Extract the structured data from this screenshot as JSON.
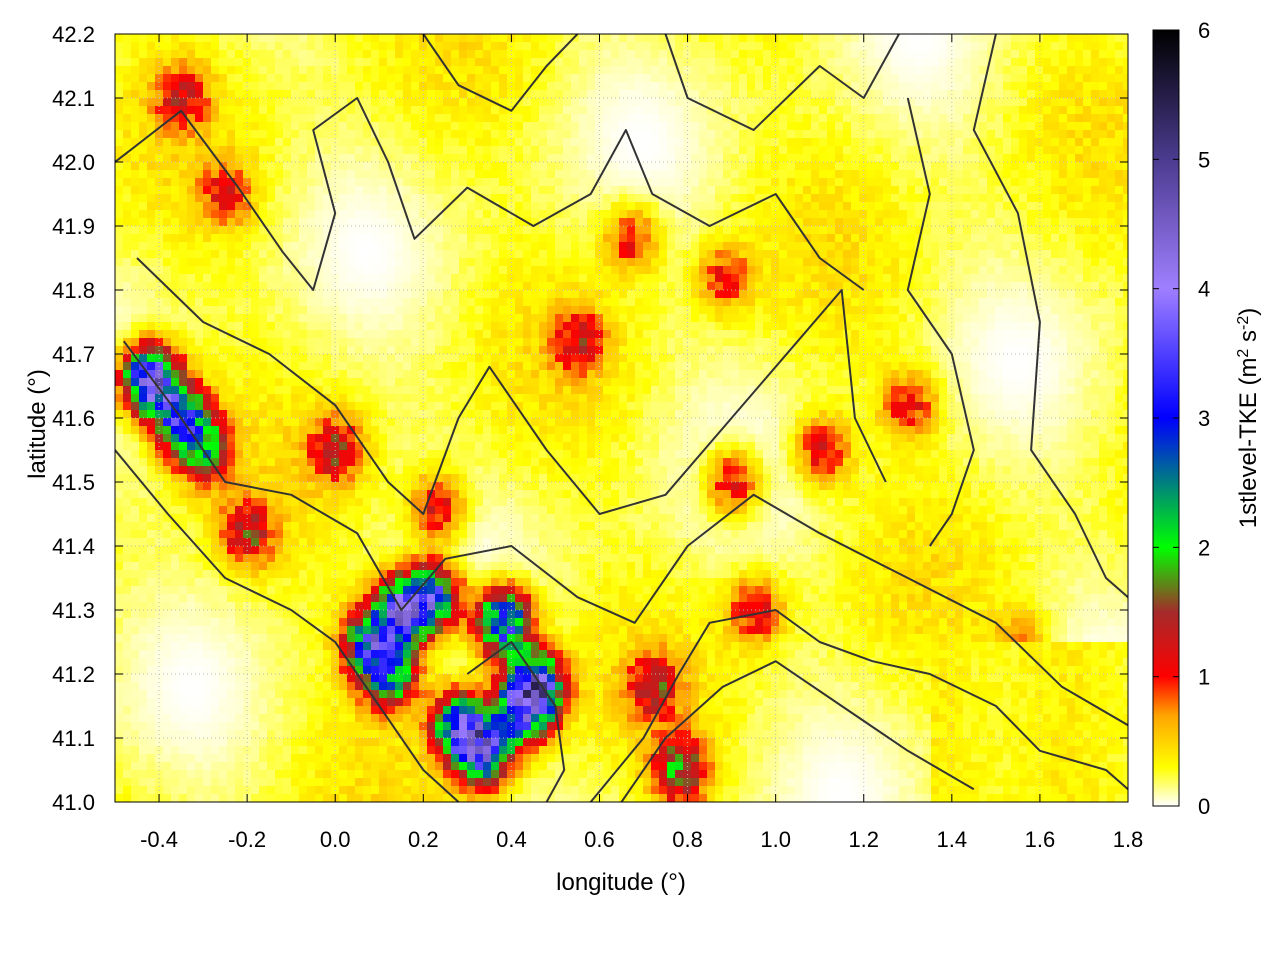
{
  "chart_data": {
    "type": "heatmap",
    "title": "",
    "xlabel": "longitude (°)",
    "ylabel": "latitude (°)",
    "xlim": [
      -0.5,
      1.8
    ],
    "ylim": [
      41.0,
      42.2
    ],
    "xticks": [
      "-0.4",
      "-0.2",
      "0.0",
      "0.2",
      "0.4",
      "0.6",
      "0.8",
      "1.0",
      "1.2",
      "1.4",
      "1.6",
      "1.8"
    ],
    "xtick_values": [
      -0.4,
      -0.2,
      0.0,
      0.2,
      0.4,
      0.6,
      0.8,
      1.0,
      1.2,
      1.4,
      1.6,
      1.8
    ],
    "yticks": [
      "41.0",
      "41.1",
      "41.2",
      "41.3",
      "41.4",
      "41.5",
      "41.6",
      "41.7",
      "41.8",
      "41.9",
      "42.0",
      "42.1",
      "42.2"
    ],
    "ytick_values": [
      41.0,
      41.1,
      41.2,
      41.3,
      41.4,
      41.5,
      41.6,
      41.7,
      41.8,
      41.9,
      42.0,
      42.1,
      42.2
    ],
    "grid": true,
    "colorbar": {
      "label": "1stlevel-TKE (m² s⁻²)",
      "label_main": "1stlevel-TKE (m",
      "label_sup1": "2",
      "label_mid": " s",
      "label_sup2": "-2",
      "label_end": ")",
      "range": [
        0,
        6
      ],
      "ticks": [
        "0",
        "1",
        "2",
        "3",
        "4",
        "5",
        "6"
      ],
      "tick_values": [
        0,
        1,
        2,
        3,
        4,
        5,
        6
      ],
      "colormap": [
        {
          "value": 0.0,
          "color": "#ffffff"
        },
        {
          "value": 0.3,
          "color": "#ffff00"
        },
        {
          "value": 0.7,
          "color": "#ffa500"
        },
        {
          "value": 1.0,
          "color": "#ff0000"
        },
        {
          "value": 1.5,
          "color": "#a52a2a"
        },
        {
          "value": 2.0,
          "color": "#00ff00"
        },
        {
          "value": 3.0,
          "color": "#0000ff"
        },
        {
          "value": 4.0,
          "color": "#9f7fff"
        },
        {
          "value": 5.0,
          "color": "#4b3b8f"
        },
        {
          "value": 6.0,
          "color": "#000000"
        }
      ]
    },
    "contour_color": "#333333",
    "hotspots": [
      {
        "lon": -0.42,
        "lat": 41.66,
        "tke": 3.8
      },
      {
        "lon": -0.35,
        "lat": 41.6,
        "tke": 2.6
      },
      {
        "lon": -0.3,
        "lat": 41.55,
        "tke": 1.6
      },
      {
        "lon": -0.2,
        "lat": 41.42,
        "tke": 1.2
      },
      {
        "lon": 0.08,
        "lat": 41.25,
        "tke": 2.6
      },
      {
        "lon": 0.12,
        "lat": 41.2,
        "tke": 2.2
      },
      {
        "lon": 0.15,
        "lat": 41.3,
        "tke": 3.0
      },
      {
        "lon": 0.22,
        "lat": 41.32,
        "tke": 2.8
      },
      {
        "lon": 0.28,
        "lat": 41.12,
        "tke": 2.6
      },
      {
        "lon": 0.33,
        "lat": 41.08,
        "tke": 3.4
      },
      {
        "lon": 0.42,
        "lat": 41.14,
        "tke": 2.4
      },
      {
        "lon": 0.45,
        "lat": 41.18,
        "tke": 3.6
      },
      {
        "lon": 0.38,
        "lat": 41.28,
        "tke": 3.2
      },
      {
        "lon": 0.23,
        "lat": 41.46,
        "tke": 1.1
      },
      {
        "lon": 0.0,
        "lat": 41.55,
        "tke": 1.1
      },
      {
        "lon": 0.9,
        "lat": 41.5,
        "tke": 1.1
      },
      {
        "lon": 1.1,
        "lat": 41.55,
        "tke": 1.0
      },
      {
        "lon": 1.3,
        "lat": 41.62,
        "tke": 0.9
      },
      {
        "lon": 0.55,
        "lat": 41.72,
        "tke": 0.9
      },
      {
        "lon": 0.67,
        "lat": 41.88,
        "tke": 0.9
      },
      {
        "lon": -0.35,
        "lat": 42.1,
        "tke": 0.9
      },
      {
        "lon": -0.25,
        "lat": 41.95,
        "tke": 0.8
      },
      {
        "lon": 0.78,
        "lat": 41.05,
        "tke": 1.6
      },
      {
        "lon": 0.95,
        "lat": 41.3,
        "tke": 1.0
      },
      {
        "lon": 0.72,
        "lat": 41.18,
        "tke": 1.1
      },
      {
        "lon": 0.88,
        "lat": 41.82,
        "tke": 0.8
      },
      {
        "lon": 1.55,
        "lat": 41.25,
        "tke": 0.5
      }
    ]
  }
}
